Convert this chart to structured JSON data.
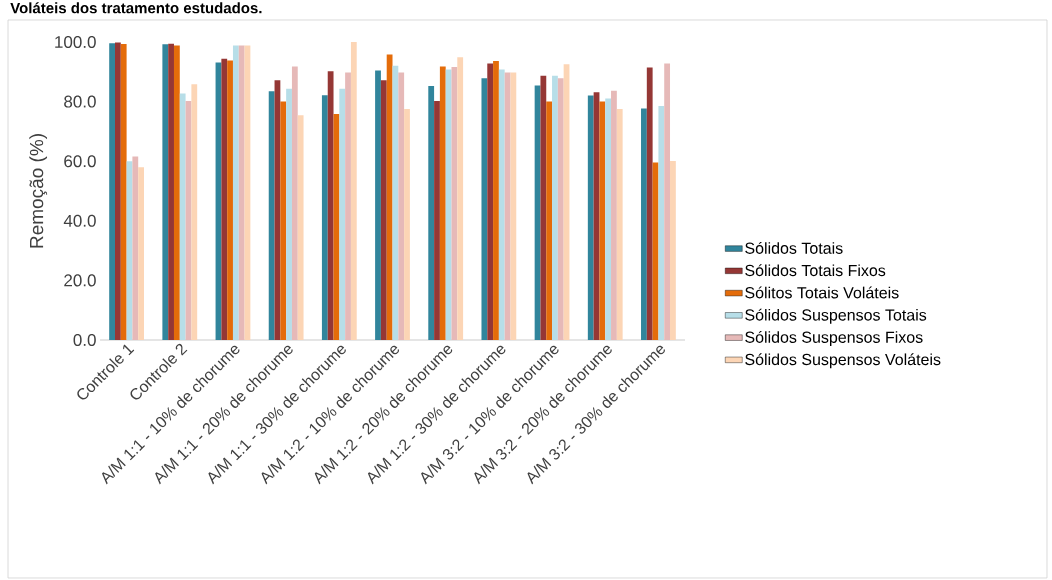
{
  "chart_data": {
    "type": "bar",
    "title": "Voláteis dos tratamento estudados.",
    "ylabel": "Remoção (%)",
    "categories": [
      "Controle 1",
      "Controle 2",
      "A/M 1:1 - 10% de chorume",
      "A/M 1:1 - 20% de chorume",
      "A/M 1:1 - 30% de chorume",
      "A/M 1:2 - 10% de chorume",
      "A/M 1:2 - 20% de chorume",
      "A/M 1:2 - 30% de chorume",
      "A/M 3:2 - 10% de chorume",
      "A/M 3:2 - 20% de chorume",
      "A/M 3:2 - 30% de chorume"
    ],
    "series": [
      {
        "name": "Sólidos Totais",
        "color": "#31859c",
        "values": [
          99.6,
          99.2,
          93.1,
          83.5,
          82.1,
          90.4,
          85.2,
          87.8,
          85.4,
          82.0,
          77.7
        ]
      },
      {
        "name": "Sólidos Totais Fixos",
        "color": "#953735",
        "values": [
          99.8,
          99.4,
          94.4,
          87.2,
          90.2,
          87.2,
          80.2,
          92.8,
          88.7,
          83.1,
          91.4
        ]
      },
      {
        "name": "Sólitos Totais Voláteis",
        "color": "#e46c0a",
        "values": [
          99.3,
          98.8,
          93.8,
          80.0,
          75.8,
          95.8,
          91.8,
          93.6,
          80.0,
          80.0,
          59.6
        ]
      },
      {
        "name": "Sólidos Suspensos Totais",
        "color": "#b7dee8",
        "values": [
          60.0,
          82.7,
          98.8,
          84.3,
          84.3,
          92.0,
          90.8,
          90.8,
          88.7,
          81.0,
          78.5
        ]
      },
      {
        "name": "Sólidos Suspensos Fixos",
        "color": "#e6b9b8",
        "values": [
          61.6,
          80.2,
          98.8,
          91.8,
          89.8,
          89.8,
          91.6,
          89.8,
          87.8,
          83.6,
          92.8
        ]
      },
      {
        "name": "Sólidos Suspensos Voláteis",
        "color": "#fcd5b5",
        "values": [
          58.0,
          85.8,
          98.8,
          75.4,
          100.0,
          77.5,
          94.9,
          89.8,
          92.5,
          77.5,
          60.1
        ]
      }
    ],
    "ylim": [
      0,
      100
    ],
    "yticks": [
      {
        "value": 0,
        "label": "0.0"
      },
      {
        "value": 20,
        "label": "20.0"
      },
      {
        "value": 40,
        "label": "40.0"
      },
      {
        "value": 60,
        "label": "60.0"
      },
      {
        "value": 80,
        "label": "80.0"
      },
      {
        "value": 100,
        "label": "100.0"
      }
    ],
    "legend": "right",
    "grid": false
  }
}
